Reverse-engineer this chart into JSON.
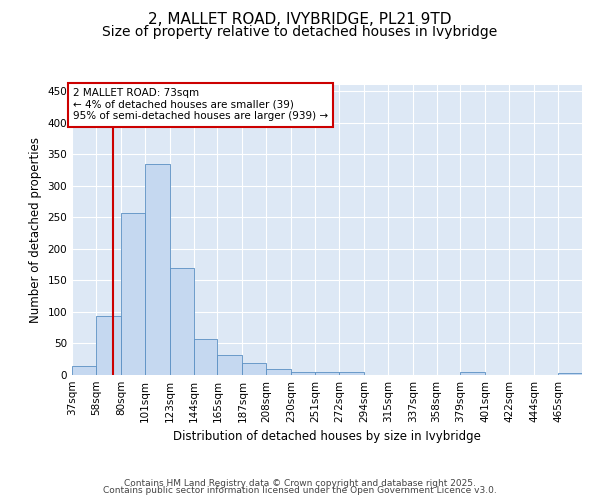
{
  "title": "2, MALLET ROAD, IVYBRIDGE, PL21 9TD",
  "subtitle": "Size of property relative to detached houses in Ivybridge",
  "xlabel": "Distribution of detached houses by size in Ivybridge",
  "ylabel": "Number of detached properties",
  "bin_labels": [
    "37sqm",
    "58sqm",
    "80sqm",
    "101sqm",
    "123sqm",
    "144sqm",
    "165sqm",
    "187sqm",
    "208sqm",
    "230sqm",
    "251sqm",
    "272sqm",
    "294sqm",
    "315sqm",
    "337sqm",
    "358sqm",
    "379sqm",
    "401sqm",
    "422sqm",
    "444sqm",
    "465sqm"
  ],
  "bin_edges": [
    37,
    58,
    80,
    101,
    123,
    144,
    165,
    187,
    208,
    230,
    251,
    272,
    294,
    315,
    337,
    358,
    379,
    401,
    422,
    444,
    465
  ],
  "bar_heights": [
    15,
    93,
    257,
    335,
    170,
    57,
    32,
    19,
    9,
    5,
    4,
    4,
    0,
    0,
    0,
    0,
    4,
    0,
    0,
    0,
    3
  ],
  "bar_color": "#c5d8f0",
  "bar_edge_color": "#5a8fc3",
  "property_size": 73,
  "property_line_color": "#cc0000",
  "annotation_text": "2 MALLET ROAD: 73sqm\n← 4% of detached houses are smaller (39)\n95% of semi-detached houses are larger (939) →",
  "annotation_box_color": "#ffffff",
  "annotation_box_edge": "#cc0000",
  "ylim": [
    0,
    460
  ],
  "yticks": [
    0,
    50,
    100,
    150,
    200,
    250,
    300,
    350,
    400,
    450
  ],
  "background_color": "#dde8f5",
  "footer_line1": "Contains HM Land Registry data © Crown copyright and database right 2025.",
  "footer_line2": "Contains public sector information licensed under the Open Government Licence v3.0.",
  "title_fontsize": 11,
  "subtitle_fontsize": 10,
  "axis_label_fontsize": 8.5,
  "tick_fontsize": 7.5,
  "annotation_fontsize": 7.5,
  "footer_fontsize": 6.5
}
